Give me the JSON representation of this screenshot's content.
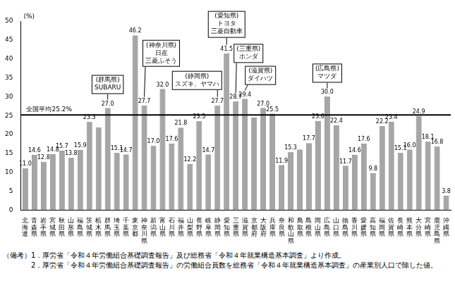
{
  "chart_data": {
    "type": "bar",
    "ylabel": "(%)",
    "categories": [
      "北海道",
      "青森県",
      "岩手県",
      "宮城県",
      "秋田県",
      "山形県",
      "福島県",
      "茨城県",
      "栃木県",
      "群馬県",
      "埼玉県",
      "千葉県",
      "東京都",
      "神奈川県",
      "新潟県",
      "富山県",
      "石川県",
      "福井県",
      "山梨県",
      "長野県",
      "岐阜県",
      "静岡県",
      "愛知県",
      "三重県",
      "滋賀県",
      "京都府",
      "大阪府",
      "兵庫県",
      "奈良県",
      "和歌山県",
      "鳥取県",
      "島根県",
      "岡山県",
      "広島県",
      "山口県",
      "徳島県",
      "香川県",
      "愛媛県",
      "高知県",
      "福岡県",
      "佐賀県",
      "長崎県",
      "熊本県",
      "大分県",
      "宮崎県",
      "鹿児島県",
      "沖縄県"
    ],
    "values": [
      11.0,
      14.6,
      12.8,
      14.8,
      15.7,
      13.8,
      15.9,
      23.3,
      21.9,
      27.0,
      15.1,
      14.7,
      46.2,
      27.7,
      17.0,
      32.0,
      17.6,
      21.8,
      12.2,
      23.5,
      14.7,
      27.7,
      41.5,
      28.7,
      29.4,
      24.5,
      27.0,
      25.5,
      11.9,
      15.3,
      16.0,
      17.7,
      23.6,
      30.0,
      22.4,
      11.7,
      14.6,
      17.6,
      9.8,
      22.2,
      23.4,
      15.1,
      16.0,
      24.9,
      18.1,
      16.8,
      3.8
    ],
    "value_labels": [
      "11.0",
      "14.6",
      "12.8",
      "14.8",
      "15.7",
      "13.8",
      "15.9",
      "23.3",
      null,
      "27.0",
      "15.1",
      "14.7",
      "46.2",
      "27.7",
      "17.0",
      "32.0",
      "17.6",
      "21.8",
      "12.2",
      "23.5",
      "14.7",
      "27.7",
      "41.5",
      "28.7",
      "29.4",
      null,
      "27.0",
      "25.5",
      "11.9",
      "15.3",
      null,
      "17.7",
      "23.6",
      "30.0",
      "22.4",
      "11.7",
      "14.6",
      "17.6",
      "9.8",
      "22.2",
      "23.4",
      "15.1",
      "16.0",
      "24.9",
      "18.1",
      "16.8",
      "3.8"
    ],
    "color": "#a6a6a6",
    "data_labels": true,
    "grid": false,
    "ylim": [
      0,
      50
    ],
    "yticks": [
      0,
      5,
      10,
      15,
      20,
      25,
      30,
      35,
      40,
      45,
      50
    ],
    "reference_line": {
      "value": 25.2,
      "label": "全国平均25.2%"
    },
    "annotations": [
      {
        "category": "群馬県",
        "text": [
          "(群馬県)",
          "SUBARU"
        ]
      },
      {
        "category": "神奈川県",
        "text": [
          "(神奈川県)",
          "日産",
          "三菱ふそう"
        ]
      },
      {
        "category": "静岡県",
        "text": [
          "(静岡県)",
          "スズキ、ヤマハ"
        ]
      },
      {
        "category": "愛知県",
        "text": [
          "(愛知県)",
          "トヨタ",
          "三菱自動車"
        ]
      },
      {
        "category": "三重県",
        "text": [
          "(三重県)",
          "ホンダ"
        ]
      },
      {
        "category": "滋賀県",
        "text": [
          "(滋賀県)",
          "ダイハツ"
        ]
      },
      {
        "category": "広島県",
        "text": [
          "(広島県)",
          "マツダ"
        ]
      }
    ],
    "notes": {
      "heading": "（備考）",
      "items": [
        "1．厚労省「令和４年労働組合基礎調査報告」及び総務省「令和４年就業構造基本調査」より作成。",
        "2．厚労省「令和４年労働組合基礎調査報告」の労働組合員数を総務省「令和４年就業構造基本調査」の産業別人口で除した値。"
      ]
    }
  }
}
